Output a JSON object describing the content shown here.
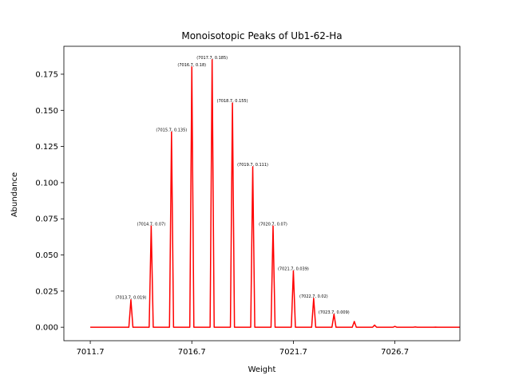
{
  "chart_data": {
    "type": "line",
    "title": "Monoisotopic Peaks of Ub1-62-Ha",
    "xlabel": "Weight",
    "ylabel": "Abundance",
    "xlim": [
      7010.4,
      7029.9
    ],
    "ylim": [
      -0.0093,
      0.1943
    ],
    "x_ticks": [
      "7011.7",
      "7016.7",
      "7021.7",
      "7026.7"
    ],
    "y_ticks": [
      "0.000",
      "0.025",
      "0.050",
      "0.075",
      "0.100",
      "0.125",
      "0.150",
      "0.175"
    ],
    "line_color": "#ff0000",
    "x_start": 7011.7,
    "x_end": 7029.9,
    "peaks": [
      {
        "x": 7013.7,
        "y": 0.019,
        "label": "(7013.7, 0.019)"
      },
      {
        "x": 7014.7,
        "y": 0.07,
        "label": "(7014.7, 0.07)"
      },
      {
        "x": 7015.7,
        "y": 0.135,
        "label": "(7015.7, 0.135)"
      },
      {
        "x": 7016.7,
        "y": 0.18,
        "label": "(7016.7, 0.18)"
      },
      {
        "x": 7017.7,
        "y": 0.185,
        "label": "(7017.7, 0.185)"
      },
      {
        "x": 7018.7,
        "y": 0.155,
        "label": "(7018.7, 0.155)"
      },
      {
        "x": 7019.7,
        "y": 0.111,
        "label": "(7019.7, 0.111)"
      },
      {
        "x": 7020.7,
        "y": 0.07,
        "label": "(7020.7, 0.07)"
      },
      {
        "x": 7021.7,
        "y": 0.039,
        "label": "(7021.7, 0.039)"
      },
      {
        "x": 7022.7,
        "y": 0.02,
        "label": "(7022.7, 0.02)"
      },
      {
        "x": 7023.7,
        "y": 0.009,
        "label": "(7023.7, 0.009)"
      },
      {
        "x": 7024.7,
        "y": 0.004,
        "label": ""
      },
      {
        "x": 7025.7,
        "y": 0.0015,
        "label": ""
      },
      {
        "x": 7026.7,
        "y": 0.0006,
        "label": ""
      },
      {
        "x": 7027.7,
        "y": 0.0002,
        "label": ""
      },
      {
        "x": 7028.7,
        "y": 0.0001,
        "label": ""
      }
    ]
  }
}
